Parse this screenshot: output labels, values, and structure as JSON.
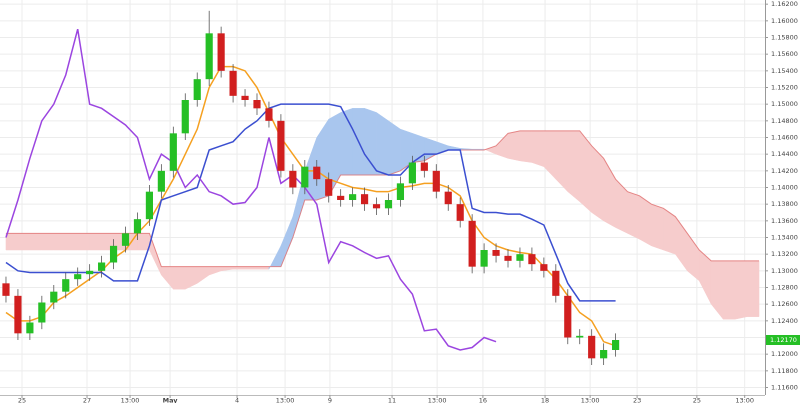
{
  "chart_data": {
    "type": "candlestick",
    "ylim": [
      1.1151,
      1.1625
    ],
    "xlim": [
      -0.5,
      63.5
    ],
    "grid": true,
    "yticks": [
      {
        "value": 1.162,
        "label": "1.16200"
      },
      {
        "value": 1.16,
        "label": "1.16000"
      },
      {
        "value": 1.158,
        "label": "1.15800"
      },
      {
        "value": 1.156,
        "label": "1.15600"
      },
      {
        "value": 1.154,
        "label": "1.15400"
      },
      {
        "value": 1.152,
        "label": "1.15200"
      },
      {
        "value": 1.15,
        "label": "1.15000"
      },
      {
        "value": 1.148,
        "label": "1.14800"
      },
      {
        "value": 1.146,
        "label": "1.14600"
      },
      {
        "value": 1.144,
        "label": "1.14400"
      },
      {
        "value": 1.142,
        "label": "1.14200"
      },
      {
        "value": 1.14,
        "label": "1.14000"
      },
      {
        "value": 1.138,
        "label": "1.13800"
      },
      {
        "value": 1.136,
        "label": "1.13600"
      },
      {
        "value": 1.134,
        "label": "1.13400"
      },
      {
        "value": 1.132,
        "label": "1.13200"
      },
      {
        "value": 1.13,
        "label": "1.13000"
      },
      {
        "value": 1.128,
        "label": "1.12800"
      },
      {
        "value": 1.126,
        "label": "1.12600"
      },
      {
        "value": 1.124,
        "label": "1.12400"
      },
      {
        "value": 1.122,
        "label": "1.12200"
      },
      {
        "value": 1.12,
        "label": "1.12000"
      },
      {
        "value": 1.118,
        "label": "1.11800"
      },
      {
        "value": 1.116,
        "label": "1.11600"
      }
    ],
    "xticks": [
      {
        "value": 1.34,
        "label": "25"
      },
      {
        "value": 6.78,
        "label": "27"
      },
      {
        "value": 10.38,
        "label": "13:00"
      },
      {
        "value": 13.73,
        "label": "May"
      },
      {
        "value": 19.33,
        "label": "4"
      },
      {
        "value": 23.35,
        "label": "13:00"
      },
      {
        "value": 27.1,
        "label": "9"
      },
      {
        "value": 32.3,
        "label": "11"
      },
      {
        "value": 36.07,
        "label": "13:00"
      },
      {
        "value": 39.9,
        "label": "16"
      },
      {
        "value": 45.1,
        "label": "18"
      },
      {
        "value": 48.87,
        "label": "13:00"
      },
      {
        "value": 52.8,
        "label": "23"
      },
      {
        "value": 57.8,
        "label": "25"
      },
      {
        "value": 61.8,
        "label": "13:00"
      }
    ],
    "last_price": {
      "value": 1.1217,
      "label": "1.12170"
    },
    "up_color": "#25bf25",
    "down_color": "#d11f1f",
    "open": [
      1.1285,
      1.127,
      1.1225,
      1.1238,
      1.1262,
      1.1275,
      1.129,
      1.1296,
      1.13,
      1.131,
      1.133,
      1.1345,
      1.1362,
      1.1395,
      1.142,
      1.1465,
      1.1505,
      1.153,
      1.1585,
      1.154,
      1.151,
      1.1505,
      1.1495,
      1.148,
      1.142,
      1.14,
      1.1425,
      1.141,
      1.139,
      1.1385,
      1.1392,
      1.138,
      1.1375,
      1.1385,
      1.1405,
      1.143,
      1.142,
      1.1395,
      1.138,
      1.136,
      1.1305,
      1.1325,
      1.1318,
      1.1312,
      1.132,
      1.1308,
      1.13,
      1.127,
      1.122,
      1.1222,
      1.1195,
      1.1205
    ],
    "high": [
      1.1293,
      1.1278,
      1.1246,
      1.127,
      1.1283,
      1.1298,
      1.1304,
      1.1308,
      1.1318,
      1.1338,
      1.1353,
      1.137,
      1.1403,
      1.1428,
      1.1473,
      1.1513,
      1.1538,
      1.1612,
      1.1593,
      1.1548,
      1.1518,
      1.1513,
      1.1503,
      1.1488,
      1.1428,
      1.1433,
      1.1433,
      1.1418,
      1.1398,
      1.14,
      1.14,
      1.1388,
      1.1393,
      1.1413,
      1.1438,
      1.1438,
      1.1428,
      1.1403,
      1.1388,
      1.1368,
      1.1333,
      1.1333,
      1.1326,
      1.1328,
      1.1328,
      1.1316,
      1.1308,
      1.1278,
      1.123,
      1.123,
      1.1213,
      1.1225
    ],
    "low": [
      1.1262,
      1.1217,
      1.1217,
      1.123,
      1.1254,
      1.1267,
      1.1282,
      1.1288,
      1.1292,
      1.1302,
      1.1322,
      1.1337,
      1.1354,
      1.1387,
      1.1412,
      1.1457,
      1.1497,
      1.1522,
      1.1532,
      1.1502,
      1.1497,
      1.1487,
      1.1472,
      1.1412,
      1.1392,
      1.1392,
      1.1402,
      1.1382,
      1.1377,
      1.1377,
      1.1372,
      1.1367,
      1.1367,
      1.1377,
      1.1397,
      1.1412,
      1.1387,
      1.1372,
      1.1352,
      1.1297,
      1.1297,
      1.131,
      1.1304,
      1.1304,
      1.13,
      1.1292,
      1.1262,
      1.1212,
      1.1212,
      1.1187,
      1.1187,
      1.1197
    ],
    "close": [
      1.127,
      1.1225,
      1.1238,
      1.1262,
      1.1275,
      1.129,
      1.1296,
      1.13,
      1.131,
      1.133,
      1.1345,
      1.1362,
      1.1395,
      1.142,
      1.1465,
      1.1505,
      1.153,
      1.1585,
      1.154,
      1.151,
      1.1505,
      1.1495,
      1.148,
      1.142,
      1.14,
      1.1425,
      1.141,
      1.139,
      1.1385,
      1.1392,
      1.138,
      1.1375,
      1.1385,
      1.1405,
      1.143,
      1.142,
      1.1395,
      1.138,
      1.136,
      1.1305,
      1.1325,
      1.1318,
      1.1312,
      1.132,
      1.1308,
      1.13,
      1.127,
      1.122,
      1.1222,
      1.1195,
      1.1205,
      1.1217
    ],
    "lines": [
      {
        "color": "#f5a020",
        "values": [
          1.125,
          1.124,
          1.124,
          1.1245,
          1.1262,
          1.127,
          1.128,
          1.129,
          1.13,
          1.1315,
          1.1325,
          1.1345,
          1.136,
          1.1385,
          1.141,
          1.144,
          1.147,
          1.152,
          1.1545,
          1.1545,
          1.154,
          1.152,
          1.149,
          1.146,
          1.144,
          1.142,
          1.142,
          1.141,
          1.1405,
          1.14,
          1.1398,
          1.1395,
          1.1395,
          1.14,
          1.1402,
          1.1405,
          1.1405,
          1.14,
          1.139,
          1.136,
          1.134,
          1.133,
          1.1325,
          1.1322,
          1.132,
          1.1305,
          1.129,
          1.127,
          1.125,
          1.124,
          1.1215,
          1.121
        ]
      },
      {
        "color": "#3b4fd0",
        "values": [
          1.131,
          1.13,
          1.1298,
          1.1298,
          1.1298,
          1.1298,
          1.1298,
          1.1298,
          1.1298,
          1.1288,
          1.1288,
          1.1288,
          1.133,
          1.1385,
          1.139,
          1.1395,
          1.14,
          1.1445,
          1.145,
          1.1455,
          1.147,
          1.148,
          1.1495,
          1.15,
          1.15,
          1.15,
          1.15,
          1.15,
          1.1497,
          1.147,
          1.144,
          1.142,
          1.1415,
          1.1415,
          1.143,
          1.144,
          1.144,
          1.1445,
          1.1445,
          1.1375,
          1.137,
          1.137,
          1.1368,
          1.1368,
          1.1362,
          1.1355,
          1.132,
          1.1285,
          1.1264,
          1.1264,
          1.1264,
          1.1264
        ]
      },
      {
        "color": "#9b45e0",
        "values": [
          1.134,
          1.1385,
          1.1435,
          1.148,
          1.15,
          1.1535,
          1.159,
          1.15,
          1.1495,
          1.1485,
          1.1475,
          1.146,
          1.141,
          1.144,
          1.143,
          1.14,
          1.1415,
          1.1395,
          1.139,
          1.138,
          1.1382,
          1.14,
          1.146,
          1.1405,
          1.1415,
          1.14,
          1.138,
          1.131,
          1.1335,
          1.133,
          1.1322,
          1.1315,
          1.1318,
          1.129,
          1.1272,
          1.1228,
          1.123,
          1.121,
          1.1205,
          1.1208,
          1.122,
          1.1215
        ]
      }
    ],
    "cloud": {
      "up_color": "#a9c6ee",
      "down_color": "#f6cccc",
      "edge_color": "#e07070",
      "span_a": [
        1.1325,
        1.1325,
        1.1325,
        1.1325,
        1.1325,
        1.1325,
        1.1325,
        1.1325,
        1.1325,
        1.1325,
        1.1325,
        1.1325,
        1.1325,
        1.1295,
        1.1278,
        1.1278,
        1.1285,
        1.1295,
        1.13,
        1.1302,
        1.1302,
        1.1302,
        1.1302,
        1.133,
        1.1365,
        1.142,
        1.146,
        1.1482,
        1.149,
        1.1495,
        1.1495,
        1.149,
        1.148,
        1.147,
        1.1465,
        1.146,
        1.1455,
        1.145,
        1.1447,
        1.1446,
        1.1446,
        1.144,
        1.1435,
        1.1432,
        1.143,
        1.1425,
        1.141,
        1.1395,
        1.1383,
        1.137,
        1.136,
        1.1352,
        1.1345,
        1.1338,
        1.133,
        1.1325,
        1.132,
        1.13,
        1.1288,
        1.126,
        1.1242,
        1.1242,
        1.1245,
        1.1245
      ],
      "span_b": [
        1.1345,
        1.1345,
        1.1345,
        1.1345,
        1.1345,
        1.1345,
        1.1345,
        1.1345,
        1.1345,
        1.1345,
        1.1345,
        1.1345,
        1.1345,
        1.1305,
        1.1305,
        1.1305,
        1.1305,
        1.1305,
        1.1305,
        1.1305,
        1.1305,
        1.1305,
        1.1305,
        1.1305,
        1.134,
        1.1385,
        1.1385,
        1.139,
        1.1415,
        1.1415,
        1.1415,
        1.1415,
        1.1415,
        1.142,
        1.143,
        1.1432,
        1.144,
        1.1445,
        1.1445,
        1.1445,
        1.1445,
        1.145,
        1.1465,
        1.1468,
        1.1468,
        1.1468,
        1.1468,
        1.1468,
        1.1468,
        1.145,
        1.1435,
        1.141,
        1.1395,
        1.139,
        1.138,
        1.1375,
        1.1365,
        1.1345,
        1.1325,
        1.1312,
        1.1312,
        1.1312,
        1.1312,
        1.1312
      ]
    }
  }
}
